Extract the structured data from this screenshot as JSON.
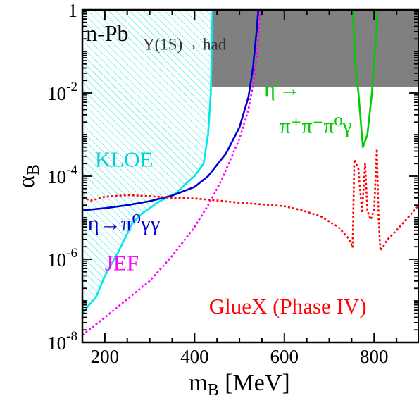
{
  "chart_data": {
    "type": "line",
    "title": "",
    "xlabel": "m",
    "xlabel_sub": "B",
    "xlabel_unit": " [MeV]",
    "ylabel": "α",
    "ylabel_sub": "B",
    "xlim": [
      150,
      900
    ],
    "ylim": [
      1e-08,
      1
    ],
    "yscale": "log",
    "grid": false,
    "x_ticks": [
      200,
      400,
      600,
      800
    ],
    "x_tick_labels": [
      "200",
      "400",
      "600",
      "800"
    ],
    "y_ticks": [
      1e-08,
      1e-06,
      0.0001,
      0.01,
      1
    ],
    "y_tick_labels": [
      {
        "base": "10",
        "exp": "-8"
      },
      {
        "base": "10",
        "exp": "-6"
      },
      {
        "base": "10",
        "exp": "-4"
      },
      {
        "base": "10",
        "exp": "-2"
      },
      {
        "base": "1",
        "exp": ""
      }
    ],
    "regions": [
      {
        "name": "Υ(1S)→ had",
        "color": "#808080",
        "style": "solid",
        "points": [
          [
            150,
            0.014
          ],
          [
            900,
            0.014
          ],
          [
            900,
            1
          ],
          [
            150,
            1
          ]
        ]
      },
      {
        "name": "n-Pb",
        "color": "#3a5bd0",
        "style": "hatched",
        "points": [
          [
            150,
            0.016
          ],
          [
            155,
            0.03
          ],
          [
            200,
            0.08
          ],
          [
            250,
            0.15
          ],
          [
            300,
            0.28
          ],
          [
            350,
            0.48
          ],
          [
            390,
            0.7
          ],
          [
            420,
            1
          ],
          [
            150,
            1
          ]
        ]
      },
      {
        "name": "KLOE",
        "color": "#00e0e0",
        "style": "hatched",
        "points": [
          [
            150,
            5e-08
          ],
          [
            180,
            1.2e-07
          ],
          [
            230,
            1.5e-06
          ],
          [
            280,
            1.2e-05
          ],
          [
            320,
            2.4e-05
          ],
          [
            380,
            6.5e-05
          ],
          [
            420,
            0.0002
          ],
          [
            438,
            0.004
          ],
          [
            440,
            1
          ],
          [
            150,
            1
          ]
        ]
      }
    ],
    "series": [
      {
        "name": "KLOE",
        "color": "#00e8e8",
        "dash": "",
        "points": [
          [
            150,
            5e-08
          ],
          [
            165,
            8e-08
          ],
          [
            180,
            1.2e-07
          ],
          [
            200,
            4e-07
          ],
          [
            230,
            1.5e-06
          ],
          [
            260,
            7e-06
          ],
          [
            280,
            1.2e-05
          ],
          [
            320,
            2.4e-05
          ],
          [
            360,
            4e-05
          ],
          [
            380,
            6.5e-05
          ],
          [
            400,
            0.0001
          ],
          [
            420,
            0.0002
          ],
          [
            430,
            0.001
          ],
          [
            436,
            0.01
          ],
          [
            440,
            1
          ]
        ]
      },
      {
        "name": "η→π⁰γγ",
        "color": "#0000cc",
        "dash": "",
        "points": [
          [
            150,
            1.5e-05
          ],
          [
            200,
            1.7e-05
          ],
          [
            250,
            2e-05
          ],
          [
            300,
            2.5e-05
          ],
          [
            350,
            3.4e-05
          ],
          [
            400,
            5.5e-05
          ],
          [
            430,
            0.0001
          ],
          [
            470,
            0.00035
          ],
          [
            500,
            0.0015
          ],
          [
            520,
            0.008
          ],
          [
            530,
            0.04
          ],
          [
            538,
            0.3
          ],
          [
            542,
            1
          ]
        ]
      },
      {
        "name": "JEF",
        "color": "#ff00ff",
        "dash": "3,3",
        "points": [
          [
            150,
            1.5e-08
          ],
          [
            200,
            4e-08
          ],
          [
            250,
            1.1e-07
          ],
          [
            300,
            3e-07
          ],
          [
            350,
            1.2e-06
          ],
          [
            400,
            6e-06
          ],
          [
            430,
            2e-05
          ],
          [
            460,
            8e-05
          ],
          [
            480,
            0.00025
          ],
          [
            500,
            0.0008
          ],
          [
            520,
            0.004
          ],
          [
            532,
            0.02
          ],
          [
            540,
            0.1
          ],
          [
            546,
            1
          ]
        ]
      },
      {
        "name": "GlueX (Phase IV)",
        "color": "#ff0000",
        "dash": "3,3",
        "points": [
          [
            150,
            3e-05
          ],
          [
            170,
            2.6e-05
          ],
          [
            200,
            3.2e-05
          ],
          [
            250,
            3.5e-05
          ],
          [
            300,
            3.3e-05
          ],
          [
            350,
            3e-05
          ],
          [
            400,
            2.9e-05
          ],
          [
            450,
            2.6e-05
          ],
          [
            500,
            2.3e-05
          ],
          [
            550,
            2.1e-05
          ],
          [
            600,
            1.9e-05
          ],
          [
            640,
            1.5e-05
          ],
          [
            680,
            1.1e-05
          ],
          [
            720,
            6e-06
          ],
          [
            745,
            3e-06
          ],
          [
            752,
            1.9e-06
          ],
          [
            756,
            0.00025
          ],
          [
            765,
            0.00015
          ],
          [
            773,
            1.3e-05
          ],
          [
            780,
            0.0002
          ],
          [
            785,
            1.5e-05
          ],
          [
            792,
            9e-06
          ],
          [
            800,
            1.5e-05
          ],
          [
            806,
            0.00045
          ],
          [
            810,
            1e-05
          ],
          [
            814,
            1.6e-06
          ],
          [
            830,
            3e-06
          ],
          [
            850,
            5e-06
          ],
          [
            875,
            1e-05
          ],
          [
            900,
            2e-05
          ]
        ]
      },
      {
        "name": "η'→π⁺π⁻π⁰γ",
        "color": "#00cc00",
        "dash": "",
        "points": [
          [
            752,
            1
          ],
          [
            760,
            0.03
          ],
          [
            765,
            0.01
          ],
          [
            775,
            0.0005
          ],
          [
            780,
            0.0007
          ],
          [
            785,
            0.001
          ],
          [
            795,
            0.01
          ],
          [
            805,
            0.3
          ],
          [
            808,
            1
          ]
        ]
      }
    ],
    "annotations": [
      {
        "text": "n-Pb",
        "x": 158,
        "y": 0.18,
        "color": "#000000",
        "size": 32
      },
      {
        "text": "Υ(1S)→ had",
        "x": 285,
        "y": 0.11,
        "color": "#333333",
        "size": 23
      },
      {
        "text": "η'→",
        "x": 555,
        "y": 0.0085,
        "color": "#00cc00",
        "size": 30
      },
      {
        "text": "π⁺π⁻π⁰γ",
        "x": 590,
        "y": 0.0011,
        "color": "#00cc00",
        "size": 30
      },
      {
        "text": "KLOE",
        "x": 178,
        "y": 0.00017,
        "color": "#00d0d0",
        "size": 31
      },
      {
        "text": "η→π⁰γγ",
        "x": 162,
        "y": 5e-06,
        "color": "#0000cc",
        "size": 31
      },
      {
        "text": "JEF",
        "x": 200,
        "y": 5.5e-07,
        "color": "#ff00ff",
        "size": 31
      },
      {
        "text": "GlueX (Phase IV)",
        "x": 432,
        "y": 5e-08,
        "color": "#ff0000",
        "size": 31
      }
    ]
  }
}
